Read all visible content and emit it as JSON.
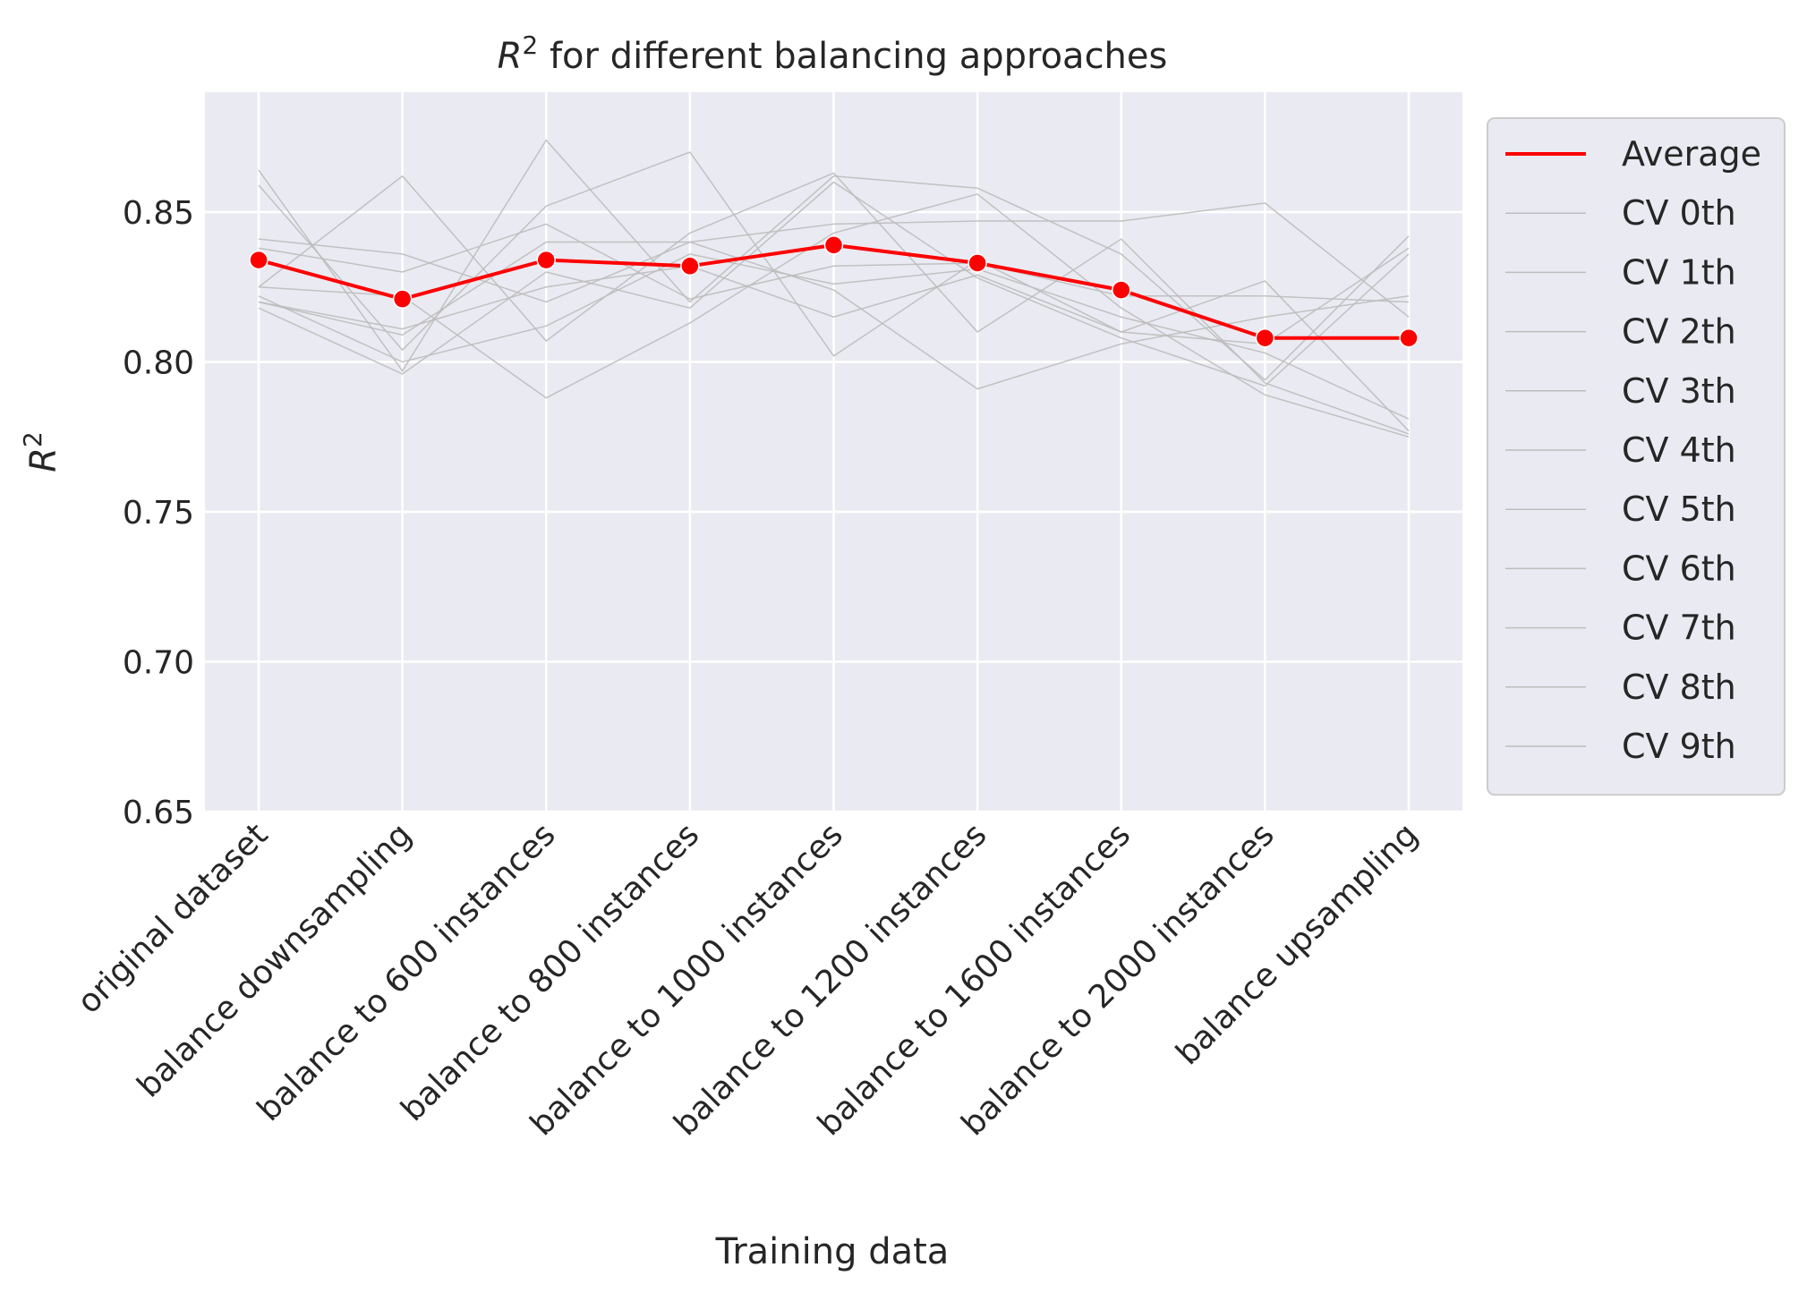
{
  "chart_data": {
    "type": "line",
    "title_main": "R",
    "title_sup": "2",
    "title_rest": " for different balancing approaches",
    "xlabel": "Training data",
    "ylabel_main": "R",
    "ylabel_sup": "2",
    "ylim": [
      0.65,
      0.89
    ],
    "yticks": [
      "0.65",
      "0.70",
      "0.75",
      "0.80",
      "0.85"
    ],
    "ytick_values": [
      0.65,
      0.7,
      0.75,
      0.8,
      0.85
    ],
    "grid": true,
    "legend_position": "outside-right",
    "categories": [
      "original dataset",
      "balance downsampling",
      "balance to 600 instances",
      "balance to 800 instances",
      "balance to 1000 instances",
      "balance to 1200 instances",
      "balance to 1600 instances",
      "balance to 2000 instances",
      "balance upsampling"
    ],
    "average": {
      "name": "Average",
      "color": "#ff0000",
      "values": [
        0.834,
        0.821,
        0.834,
        0.832,
        0.839,
        0.833,
        0.824,
        0.808,
        0.808
      ]
    },
    "series": [
      {
        "name": "CV 0th",
        "values": [
          0.864,
          0.797,
          0.874,
          0.82,
          0.862,
          0.858,
          0.836,
          0.794,
          0.842
        ]
      },
      {
        "name": "CV 1th",
        "values": [
          0.859,
          0.804,
          0.852,
          0.87,
          0.802,
          0.834,
          0.81,
          0.827,
          0.777
        ]
      },
      {
        "name": "CV 2th",
        "values": [
          0.841,
          0.836,
          0.82,
          0.84,
          0.824,
          0.791,
          0.806,
          0.815,
          0.822
        ]
      },
      {
        "name": "CV 3th",
        "values": [
          0.825,
          0.862,
          0.807,
          0.843,
          0.863,
          0.81,
          0.841,
          0.793,
          0.776
        ]
      },
      {
        "name": "CV 4th",
        "values": [
          0.82,
          0.809,
          0.84,
          0.84,
          0.846,
          0.847,
          0.847,
          0.853,
          0.815
        ]
      },
      {
        "name": "CV 5th",
        "values": [
          0.838,
          0.83,
          0.846,
          0.821,
          0.832,
          0.833,
          0.822,
          0.822,
          0.82
        ]
      },
      {
        "name": "CV 6th",
        "values": [
          0.818,
          0.796,
          0.83,
          0.818,
          0.86,
          0.828,
          0.808,
          0.792,
          0.836
        ]
      },
      {
        "name": "CV 7th",
        "values": [
          0.822,
          0.8,
          0.812,
          0.836,
          0.826,
          0.831,
          0.815,
          0.803,
          0.781
        ]
      },
      {
        "name": "CV 8th",
        "values": [
          0.825,
          0.822,
          0.788,
          0.813,
          0.843,
          0.856,
          0.818,
          0.789,
          0.775
        ]
      },
      {
        "name": "CV 9th",
        "values": [
          0.82,
          0.811,
          0.825,
          0.832,
          0.815,
          0.829,
          0.81,
          0.806,
          0.838
        ]
      }
    ],
    "cv_color": "#bdbdbd",
    "background": "#eaeaf2"
  }
}
